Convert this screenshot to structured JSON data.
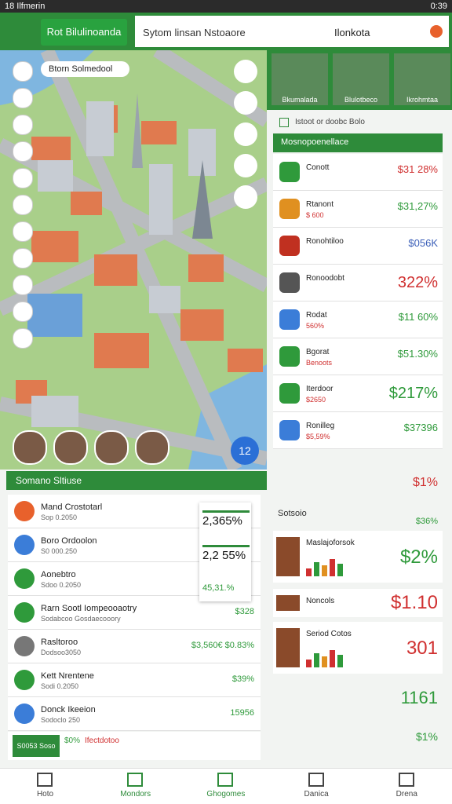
{
  "status": {
    "left": "18 Ilfmerin",
    "time": "0:39"
  },
  "header": {
    "button": "Rot Bilulinoanda",
    "search": "Sytom linsan Nstoaore",
    "location": "Ilonkota"
  },
  "map": {
    "label": "Btorn Solmedool",
    "badge": "12"
  },
  "left_section": {
    "title": "Somano Sltiuse",
    "popup": [
      "2,365%",
      "2,2 55%",
      "45,31.%"
    ],
    "items": [
      {
        "name": "Mand Crostotarl",
        "sub": "Sop 0.2050",
        "value": "",
        "color": "#e8612c"
      },
      {
        "name": "Boro Ordoolon",
        "sub": "S0 000.250",
        "value": "",
        "color": "#3b7dd8"
      },
      {
        "name": "Aonebtro",
        "sub": "Sdoo 0.2050",
        "value": "",
        "color": "#2f9a3b"
      },
      {
        "name": "Rarn Sootl Iompeooaotry",
        "sub": "Sodabcoo Gosdaecooory",
        "value": "$328",
        "color": "#2f9a3b"
      },
      {
        "name": "Rasltoroo",
        "sub": "Dodsoo3050",
        "value": "$3,560€ $0.83%",
        "color": "#777777"
      },
      {
        "name": "Kett Nrentene",
        "sub": "Sodi 0.2050",
        "value": "$39%",
        "color": "#2f9a3b"
      },
      {
        "name": "Donck Ikeeion",
        "sub": "Sodoclo 250",
        "value": "15956",
        "color": "#3b7dd8"
      }
    ],
    "footer": {
      "button": "S0053 Soso",
      "value": "$0%",
      "label": "Ifectdotoo"
    }
  },
  "right_panel": {
    "avatars": [
      "Bkumalada",
      "Blulotbeco",
      "Ikrohmtaa"
    ],
    "checkbox": "Istoot or doobc Bolo",
    "list_title": "Mosnopoenellace",
    "items": [
      {
        "name": "Conott",
        "sub": "",
        "value": "$31 28%",
        "color": "#2f9a3b",
        "vcolor": "#d03030"
      },
      {
        "name": "Rtanont",
        "sub": "$ 600",
        "value": "$31,27%",
        "color": "#e09020",
        "vcolor": "#2f9a3b"
      },
      {
        "name": "Ronohtiloo",
        "sub": "",
        "value": "$056K",
        "color": "#c03020",
        "vcolor": "#3b5fb8"
      },
      {
        "name": "Ronoodobt",
        "sub": "",
        "value": "322%",
        "color": "#555555",
        "vcolor": "#d03030"
      },
      {
        "name": "Rodat",
        "sub": "560%",
        "value": "$11 60%",
        "color": "#3b7dd8",
        "vcolor": "#2f9a3b"
      },
      {
        "name": "Bgorat",
        "sub": "Benoots",
        "value": "$51.30%",
        "color": "#2f9a3b",
        "vcolor": "#2f9a3b"
      },
      {
        "name": "Iterdoor",
        "sub": "$2650",
        "value": "$217%",
        "color": "#2f9a3b",
        "vcolor": "#2f9a3b"
      },
      {
        "name": "Ronilleg",
        "sub": "$5,59%",
        "value": "$37396",
        "color": "#3b7dd8",
        "vcolor": "#2f9a3b"
      }
    ],
    "after_list": "$1%",
    "section": "Sotsoio",
    "section_value": "$36%",
    "cards": [
      {
        "name": "Maslajoforsok",
        "value": "$2%"
      },
      {
        "name": "Noncols",
        "value": "$1.10"
      },
      {
        "name": "Seriod Cotos",
        "value": "301"
      }
    ],
    "tail": [
      "1161",
      "$1%"
    ]
  },
  "nav": [
    "Hoto",
    "Mondors",
    "Ghogomes",
    "Danica",
    "Drena"
  ]
}
